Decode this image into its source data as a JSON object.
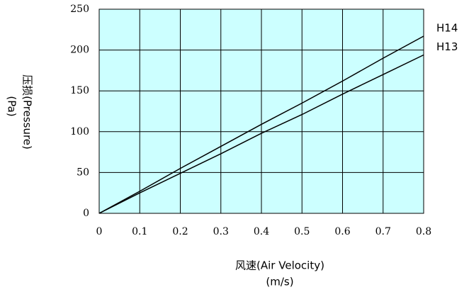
{
  "chart_data": {
    "type": "line",
    "x_label": [
      "风速(Air Velocity)",
      "(m/s)"
    ],
    "y_label": [
      "压损(Pressure)",
      "(Pa)"
    ],
    "x": [
      0,
      0.1,
      0.2,
      0.3,
      0.4,
      0.5,
      0.6,
      0.7,
      0.8
    ],
    "series": [
      {
        "name": "H14",
        "color": "#000000",
        "values": [
          0,
          27,
          55,
          82,
          109,
          135,
          162,
          190,
          217
        ]
      },
      {
        "name": "H13",
        "color": "#000000",
        "values": [
          0,
          25,
          49,
          73,
          98,
          121,
          146,
          170,
          194
        ]
      }
    ],
    "xlim": [
      0,
      0.8
    ],
    "xticks": [
      0,
      0.1,
      0.2,
      0.3,
      0.4,
      0.5,
      0.6,
      0.7,
      0.8
    ],
    "ylim": [
      0,
      250
    ],
    "yticks": [
      0,
      50,
      100,
      150,
      200,
      250
    ],
    "grid": true,
    "background": "#ccffff"
  }
}
